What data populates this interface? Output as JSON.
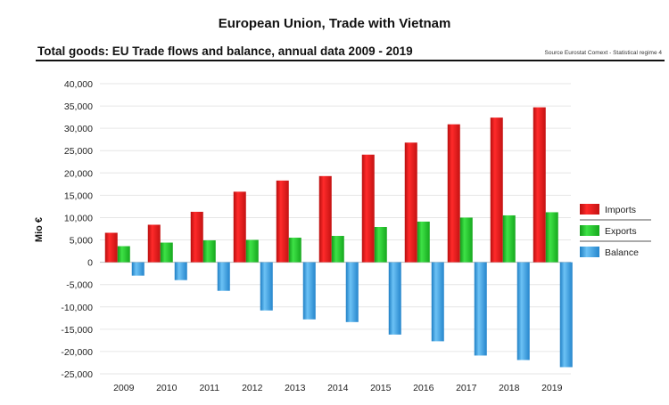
{
  "header": {
    "title": "European Union, Trade with Vietnam",
    "subtitle": "Total goods: EU Trade flows and balance, annual data 2009 - 2019",
    "source": "Source Eurostat Comext - Statistical regime 4"
  },
  "chart_data": {
    "type": "bar",
    "title": "European Union, Trade with Vietnam",
    "xlabel": "",
    "ylabel": "Mio €",
    "ylim": [
      -25000,
      40000
    ],
    "yticks": [
      40000,
      35000,
      30000,
      25000,
      20000,
      15000,
      10000,
      5000,
      0,
      -5000,
      -10000,
      -15000,
      -20000,
      -25000
    ],
    "ytick_labels": [
      "40,000",
      "35,000",
      "30,000",
      "25,000",
      "20,000",
      "15,000",
      "10,000",
      "5,000",
      "0",
      "-5,000",
      "-10,000",
      "-15,000",
      "-20,000",
      "-25,000"
    ],
    "grid": true,
    "legend_position": "right",
    "categories": [
      "2009",
      "2010",
      "2011",
      "2012",
      "2013",
      "2014",
      "2015",
      "2016",
      "2017",
      "2018",
      "2019"
    ],
    "series": [
      {
        "name": "Imports",
        "color": "#e21b1b",
        "values": [
          6600,
          8400,
          11300,
          15800,
          18300,
          19300,
          24100,
          26800,
          30900,
          32400,
          34700
        ]
      },
      {
        "name": "Exports",
        "color": "#22c22a",
        "values": [
          3600,
          4400,
          4900,
          5000,
          5500,
          5900,
          7900,
          9100,
          10000,
          10500,
          11200
        ]
      },
      {
        "name": "Balance",
        "color": "#3aa4e6",
        "values": [
          -3000,
          -4000,
          -6400,
          -10800,
          -12800,
          -13400,
          -16200,
          -17700,
          -20900,
          -21900,
          -23500
        ]
      }
    ]
  }
}
